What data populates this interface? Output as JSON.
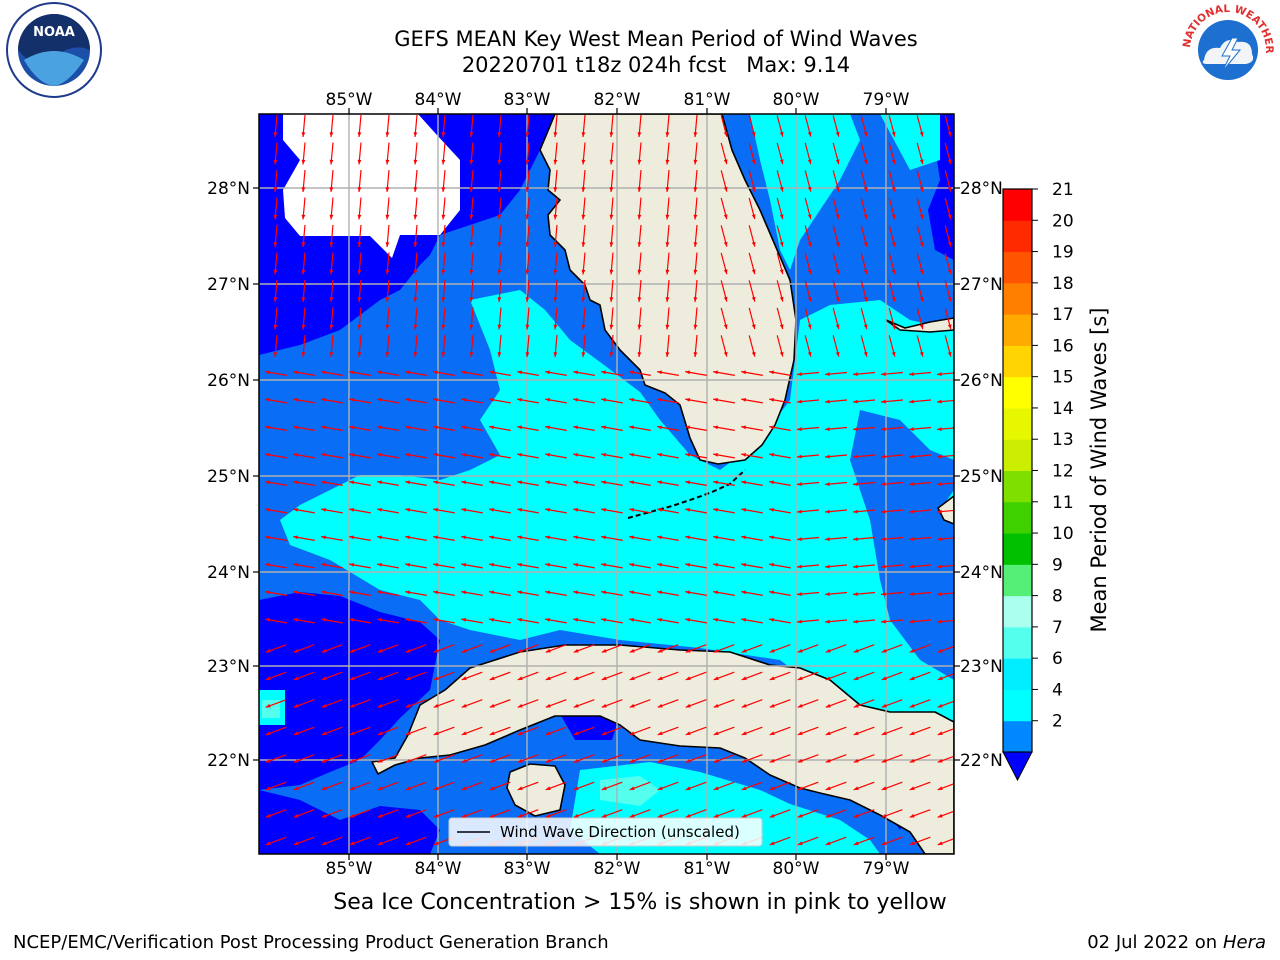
{
  "title": {
    "line1": "GEFS MEAN Key West Mean Period of Wind Waves",
    "line2": "20220701 t18z 024h fcst   Max: 9.14"
  },
  "map": {
    "lon_labels": [
      "85°W",
      "84°W",
      "83°W",
      "82°W",
      "81°W",
      "80°W",
      "79°W"
    ],
    "lat_labels": [
      "28°N",
      "27°N",
      "26°N",
      "25°N",
      "24°N",
      "23°N",
      "22°N"
    ],
    "legend_label": "Wind Wave Direction (unscaled)",
    "land_color": "#eeecdc",
    "arrow_color": "#ff0000"
  },
  "colorbar": {
    "label": "Mean Period of Wind Waves [s]",
    "ticks": [
      "21",
      "20",
      "19",
      "18",
      "17",
      "16",
      "15",
      "14",
      "13",
      "12",
      "11",
      "10",
      "9",
      "8",
      "7",
      "6",
      "4",
      "2"
    ],
    "bands": [
      "#ff0000",
      "#ff2a00",
      "#ff5500",
      "#ff7f00",
      "#ffaa00",
      "#ffd400",
      "#ffff00",
      "#e6f700",
      "#ccee00",
      "#7fe000",
      "#3fd000",
      "#00c000",
      "#55ee77",
      "#aaffee",
      "#55ffee",
      "#00eeff",
      "#00ffff",
      "#0088ff"
    ],
    "under_color": "#0000ff"
  },
  "footer": {
    "note": "Sea Ice Concentration > 15% is shown in pink to yellow",
    "credit": "NCEP/EMC/Verification Post Processing Product Generation Branch",
    "date": "02 Jul 2022 on ",
    "machine": "Hera"
  },
  "logos": {
    "noaa_text": "NOAA",
    "nws_text": "NATIONAL WEATHER SERVICE"
  }
}
